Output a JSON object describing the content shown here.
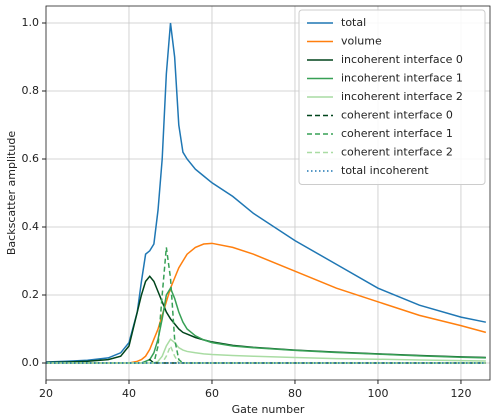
{
  "chart_data": {
    "type": "line",
    "x_label": "Gate number",
    "y_label": "Backscatter amplitude",
    "xlim": [
      20,
      127
    ],
    "ylim": [
      -0.05,
      1.05
    ],
    "xticks": [
      20,
      40,
      60,
      80,
      100,
      120
    ],
    "yticks": [
      {
        "value": 0,
        "label": "0.0"
      },
      {
        "value": 0.2,
        "label": "0.2"
      },
      {
        "value": 0.4,
        "label": "0.4"
      },
      {
        "value": 0.6,
        "label": "0.6"
      },
      {
        "value": 0.8,
        "label": "0.8"
      },
      {
        "value": 1,
        "label": "1.0"
      }
    ],
    "grid": true,
    "legend": "upper right",
    "x": [
      20,
      25,
      30,
      35,
      38,
      40,
      42,
      43,
      44,
      45,
      46,
      47,
      48,
      49,
      50,
      51,
      52,
      53,
      54,
      56,
      58,
      60,
      65,
      70,
      80,
      90,
      100,
      110,
      120,
      126
    ],
    "series": [
      {
        "name": "total",
        "color": "#1f77b4",
        "style": "solid",
        "values": [
          0.003,
          0.005,
          0.008,
          0.015,
          0.03,
          0.06,
          0.15,
          0.24,
          0.32,
          0.33,
          0.35,
          0.45,
          0.6,
          0.85,
          1.0,
          0.9,
          0.7,
          0.62,
          0.6,
          0.57,
          0.55,
          0.53,
          0.49,
          0.44,
          0.36,
          0.29,
          0.22,
          0.17,
          0.135,
          0.12
        ]
      },
      {
        "name": "volume",
        "color": "#ff7f0e",
        "style": "solid",
        "values": [
          0,
          0,
          0,
          0,
          0,
          0,
          0.005,
          0.01,
          0.02,
          0.04,
          0.07,
          0.1,
          0.14,
          0.18,
          0.22,
          0.25,
          0.28,
          0.3,
          0.32,
          0.34,
          0.35,
          0.352,
          0.34,
          0.32,
          0.27,
          0.22,
          0.18,
          0.14,
          0.11,
          0.09
        ]
      },
      {
        "name": "incoherent interface 0",
        "color": "#00441b",
        "style": "solid",
        "values": [
          0.002,
          0.003,
          0.005,
          0.01,
          0.02,
          0.05,
          0.15,
          0.2,
          0.24,
          0.255,
          0.24,
          0.21,
          0.18,
          0.15,
          0.13,
          0.115,
          0.1,
          0.09,
          0.085,
          0.075,
          0.068,
          0.062,
          0.052,
          0.046,
          0.038,
          0.032,
          0.027,
          0.022,
          0.018,
          0.016
        ]
      },
      {
        "name": "incoherent interface 1",
        "color": "#37a055",
        "style": "solid",
        "values": [
          0,
          0,
          0,
          0,
          0,
          0,
          0,
          0,
          0.005,
          0.01,
          0.03,
          0.07,
          0.13,
          0.2,
          0.22,
          0.19,
          0.15,
          0.12,
          0.1,
          0.08,
          0.068,
          0.06,
          0.05,
          0.045,
          0.037,
          0.031,
          0.026,
          0.021,
          0.017,
          0.015
        ]
      },
      {
        "name": "incoherent interface 2",
        "color": "#a9dca3",
        "style": "solid",
        "values": [
          0,
          0,
          0,
          0,
          0,
          0,
          0,
          0,
          0,
          0,
          0,
          0.005,
          0.02,
          0.05,
          0.07,
          0.06,
          0.045,
          0.038,
          0.034,
          0.03,
          0.027,
          0.025,
          0.022,
          0.02,
          0.016,
          0.013,
          0.011,
          0.009,
          0.007,
          0.006
        ]
      },
      {
        "name": "coherent interface 0",
        "color": "#00441b",
        "style": "dashed",
        "values": [
          0,
          0,
          0,
          0,
          0,
          0,
          0,
          0,
          0,
          0.01,
          0,
          0,
          0,
          0,
          0,
          0,
          0,
          0,
          0,
          0,
          0,
          0,
          0,
          0,
          0,
          0,
          0,
          0,
          0,
          0
        ]
      },
      {
        "name": "coherent interface 1",
        "color": "#37a055",
        "style": "dashed",
        "values": [
          0,
          0,
          0,
          0,
          0,
          0,
          0,
          0,
          0,
          0,
          0,
          0.05,
          0.2,
          0.34,
          0.25,
          0.07,
          0.01,
          0,
          0,
          0,
          0,
          0,
          0,
          0,
          0,
          0,
          0,
          0,
          0,
          0
        ]
      },
      {
        "name": "coherent interface 2",
        "color": "#a9dca3",
        "style": "dashed",
        "values": [
          0,
          0,
          0,
          0,
          0,
          0,
          0,
          0,
          0,
          0,
          0,
          0,
          0,
          0.02,
          0.05,
          0.02,
          0,
          0,
          0,
          0,
          0,
          0,
          0,
          0,
          0,
          0,
          0,
          0,
          0,
          0
        ]
      },
      {
        "name": "total incoherent",
        "color": "#1f77b4",
        "style": "dotted",
        "values": [
          0,
          0,
          0,
          0,
          0,
          0,
          0,
          0,
          0,
          0,
          0,
          0,
          0,
          0,
          0,
          0,
          0,
          0,
          0,
          0,
          0,
          0,
          0,
          0,
          0,
          0,
          0,
          0,
          0,
          0
        ]
      }
    ]
  }
}
